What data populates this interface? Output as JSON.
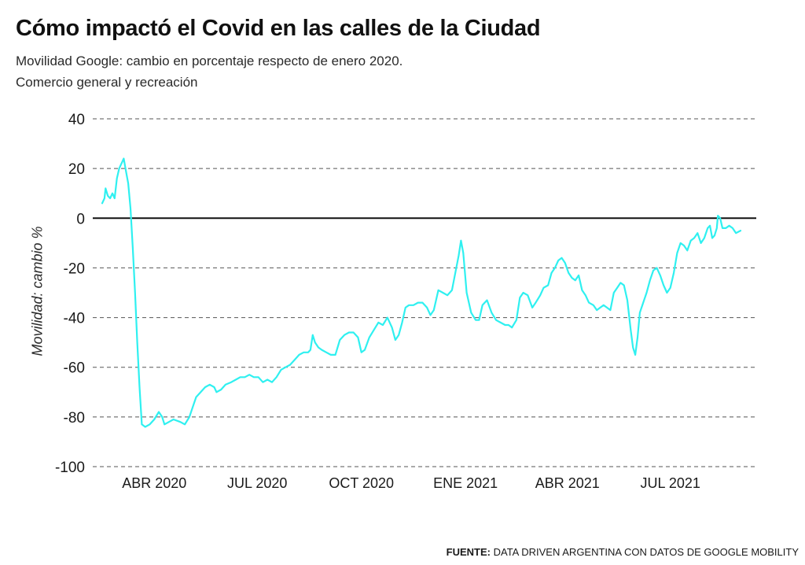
{
  "header": {
    "title": "Cómo impactó el Covid en las calles de la Ciudad",
    "subtitle_line1": "Movilidad Google: cambio en porcentaje respecto de enero 2020.",
    "subtitle_line2": "Comercio general y recreación"
  },
  "source": {
    "label": "FUENTE:",
    "text": "DATA DRIVEN ARGENTINA CON DATOS DE GOOGLE MOBILITY"
  },
  "colors": {
    "line": "#2ff0f0",
    "zero_line": "#111111",
    "grid": "#555555",
    "text": "#1a1a1a"
  },
  "chart_data": {
    "type": "line",
    "title": "Cómo impactó el Covid en las calles de la Ciudad",
    "subtitle": "Movilidad Google: cambio en porcentaje respecto de enero 2020. Comercio general y recreación",
    "xlabel": "",
    "ylabel": "Movilidad: cambio %",
    "ylim": [
      -100,
      40
    ],
    "yticks": [
      40,
      20,
      0,
      -20,
      -40,
      -60,
      -80,
      -100
    ],
    "xlim": [
      "2020-02-15",
      "2021-09-01"
    ],
    "xticks": [
      {
        "date": "2020-04-01",
        "label": "ABR 2020"
      },
      {
        "date": "2020-07-01",
        "label": "JUL 2020"
      },
      {
        "date": "2020-10-01",
        "label": "OCT 2020"
      },
      {
        "date": "2021-01-01",
        "label": "ENE 2021"
      },
      {
        "date": "2021-04-01",
        "label": "ABR 2021"
      },
      {
        "date": "2021-07-01",
        "label": "JUL 2021"
      }
    ],
    "grid": "horizontal dashed",
    "legend": "none",
    "series": [
      {
        "color": "#2ff0f0",
        "points": [
          [
            "2020-02-15",
            6
          ],
          [
            "2020-02-17",
            8
          ],
          [
            "2020-02-18",
            12
          ],
          [
            "2020-02-20",
            9
          ],
          [
            "2020-02-22",
            8
          ],
          [
            "2020-02-24",
            10
          ],
          [
            "2020-02-26",
            8
          ],
          [
            "2020-02-28",
            16
          ],
          [
            "2020-03-01",
            20
          ],
          [
            "2020-03-03",
            22
          ],
          [
            "2020-03-05",
            24
          ],
          [
            "2020-03-07",
            19
          ],
          [
            "2020-03-09",
            14
          ],
          [
            "2020-03-11",
            4
          ],
          [
            "2020-03-13",
            -12
          ],
          [
            "2020-03-15",
            -30
          ],
          [
            "2020-03-17",
            -50
          ],
          [
            "2020-03-19",
            -68
          ],
          [
            "2020-03-21",
            -83
          ],
          [
            "2020-03-24",
            -84
          ],
          [
            "2020-03-28",
            -83
          ],
          [
            "2020-04-01",
            -81
          ],
          [
            "2020-04-05",
            -78
          ],
          [
            "2020-04-08",
            -80
          ],
          [
            "2020-04-10",
            -83
          ],
          [
            "2020-04-14",
            -82
          ],
          [
            "2020-04-18",
            -81
          ],
          [
            "2020-04-24",
            -82
          ],
          [
            "2020-04-28",
            -83
          ],
          [
            "2020-05-02",
            -80
          ],
          [
            "2020-05-05",
            -76
          ],
          [
            "2020-05-08",
            -72
          ],
          [
            "2020-05-12",
            -70
          ],
          [
            "2020-05-16",
            -68
          ],
          [
            "2020-05-20",
            -67
          ],
          [
            "2020-05-24",
            -68
          ],
          [
            "2020-05-26",
            -70
          ],
          [
            "2020-05-30",
            -69
          ],
          [
            "2020-06-03",
            -67
          ],
          [
            "2020-06-08",
            -66
          ],
          [
            "2020-06-12",
            -65
          ],
          [
            "2020-06-16",
            -64
          ],
          [
            "2020-06-20",
            -64
          ],
          [
            "2020-06-24",
            -63
          ],
          [
            "2020-06-28",
            -64
          ],
          [
            "2020-07-02",
            -64
          ],
          [
            "2020-07-06",
            -66
          ],
          [
            "2020-07-10",
            -65
          ],
          [
            "2020-07-14",
            -66
          ],
          [
            "2020-07-18",
            -64
          ],
          [
            "2020-07-22",
            -61
          ],
          [
            "2020-07-26",
            -60
          ],
          [
            "2020-07-30",
            -59
          ],
          [
            "2020-08-03",
            -57
          ],
          [
            "2020-08-07",
            -55
          ],
          [
            "2020-08-11",
            -54
          ],
          [
            "2020-08-15",
            -54
          ],
          [
            "2020-08-17",
            -53
          ],
          [
            "2020-08-19",
            -47
          ],
          [
            "2020-08-21",
            -50
          ],
          [
            "2020-08-24",
            -52
          ],
          [
            "2020-08-27",
            -53
          ],
          [
            "2020-08-31",
            -54
          ],
          [
            "2020-09-04",
            -55
          ],
          [
            "2020-09-08",
            -55
          ],
          [
            "2020-09-12",
            -49
          ],
          [
            "2020-09-16",
            -47
          ],
          [
            "2020-09-20",
            -46
          ],
          [
            "2020-09-24",
            -46
          ],
          [
            "2020-09-28",
            -48
          ],
          [
            "2020-10-01",
            -54
          ],
          [
            "2020-10-04",
            -53
          ],
          [
            "2020-10-08",
            -48
          ],
          [
            "2020-10-12",
            -45
          ],
          [
            "2020-10-16",
            -42
          ],
          [
            "2020-10-20",
            -43
          ],
          [
            "2020-10-24",
            -40
          ],
          [
            "2020-10-28",
            -44
          ],
          [
            "2020-10-31",
            -49
          ],
          [
            "2020-11-03",
            -47
          ],
          [
            "2020-11-06",
            -42
          ],
          [
            "2020-11-09",
            -36
          ],
          [
            "2020-11-12",
            -35
          ],
          [
            "2020-11-16",
            -35
          ],
          [
            "2020-11-20",
            -34
          ],
          [
            "2020-11-24",
            -34
          ],
          [
            "2020-11-28",
            -36
          ],
          [
            "2020-12-01",
            -39
          ],
          [
            "2020-12-04",
            -37
          ],
          [
            "2020-12-08",
            -29
          ],
          [
            "2020-12-12",
            -30
          ],
          [
            "2020-12-16",
            -31
          ],
          [
            "2020-12-20",
            -29
          ],
          [
            "2020-12-23",
            -22
          ],
          [
            "2020-12-26",
            -15
          ],
          [
            "2020-12-28",
            -9
          ],
          [
            "2020-12-30",
            -14
          ],
          [
            "2021-01-02",
            -30
          ],
          [
            "2021-01-06",
            -38
          ],
          [
            "2021-01-10",
            -41
          ],
          [
            "2021-01-13",
            -41
          ],
          [
            "2021-01-16",
            -35
          ],
          [
            "2021-01-20",
            -33
          ],
          [
            "2021-01-24",
            -38
          ],
          [
            "2021-01-28",
            -41
          ],
          [
            "2021-02-01",
            -42
          ],
          [
            "2021-02-05",
            -43
          ],
          [
            "2021-02-08",
            -43
          ],
          [
            "2021-02-11",
            -44
          ],
          [
            "2021-02-15",
            -41
          ],
          [
            "2021-02-18",
            -32
          ],
          [
            "2021-02-21",
            -30
          ],
          [
            "2021-02-25",
            -31
          ],
          [
            "2021-03-01",
            -36
          ],
          [
            "2021-03-04",
            -34
          ],
          [
            "2021-03-08",
            -31
          ],
          [
            "2021-03-11",
            -28
          ],
          [
            "2021-03-15",
            -27
          ],
          [
            "2021-03-18",
            -22
          ],
          [
            "2021-03-21",
            -20
          ],
          [
            "2021-03-24",
            -17
          ],
          [
            "2021-03-27",
            -16
          ],
          [
            "2021-03-30",
            -18
          ],
          [
            "2021-04-02",
            -22
          ],
          [
            "2021-04-05",
            -24
          ],
          [
            "2021-04-08",
            -25
          ],
          [
            "2021-04-11",
            -23
          ],
          [
            "2021-04-14",
            -29
          ],
          [
            "2021-04-17",
            -31
          ],
          [
            "2021-04-20",
            -34
          ],
          [
            "2021-04-24",
            -35
          ],
          [
            "2021-04-27",
            -37
          ],
          [
            "2021-04-30",
            -36
          ],
          [
            "2021-05-03",
            -35
          ],
          [
            "2021-05-06",
            -36
          ],
          [
            "2021-05-09",
            -37
          ],
          [
            "2021-05-12",
            -30
          ],
          [
            "2021-05-15",
            -28
          ],
          [
            "2021-05-18",
            -26
          ],
          [
            "2021-05-21",
            -27
          ],
          [
            "2021-05-24",
            -33
          ],
          [
            "2021-05-27",
            -45
          ],
          [
            "2021-05-29",
            -52
          ],
          [
            "2021-05-31",
            -55
          ],
          [
            "2021-06-02",
            -48
          ],
          [
            "2021-06-04",
            -38
          ],
          [
            "2021-06-07",
            -34
          ],
          [
            "2021-06-10",
            -30
          ],
          [
            "2021-06-13",
            -25
          ],
          [
            "2021-06-16",
            -21
          ],
          [
            "2021-06-19",
            -20
          ],
          [
            "2021-06-22",
            -23
          ],
          [
            "2021-06-25",
            -27
          ],
          [
            "2021-06-28",
            -30
          ],
          [
            "2021-07-01",
            -28
          ],
          [
            "2021-07-04",
            -22
          ],
          [
            "2021-07-07",
            -14
          ],
          [
            "2021-07-10",
            -10
          ],
          [
            "2021-07-13",
            -11
          ],
          [
            "2021-07-16",
            -13
          ],
          [
            "2021-07-19",
            -9
          ],
          [
            "2021-07-22",
            -8
          ],
          [
            "2021-07-25",
            -6
          ],
          [
            "2021-07-28",
            -10
          ],
          [
            "2021-07-31",
            -8
          ],
          [
            "2021-08-03",
            -4
          ],
          [
            "2021-08-05",
            -3
          ],
          [
            "2021-08-07",
            -8
          ],
          [
            "2021-08-09",
            -7
          ],
          [
            "2021-08-11",
            -4
          ],
          [
            "2021-08-12",
            1
          ],
          [
            "2021-08-14",
            0
          ],
          [
            "2021-08-16",
            -4
          ],
          [
            "2021-08-19",
            -4
          ],
          [
            "2021-08-22",
            -3
          ],
          [
            "2021-08-25",
            -4
          ],
          [
            "2021-08-28",
            -6
          ],
          [
            "2021-09-01",
            -5
          ]
        ]
      }
    ]
  }
}
